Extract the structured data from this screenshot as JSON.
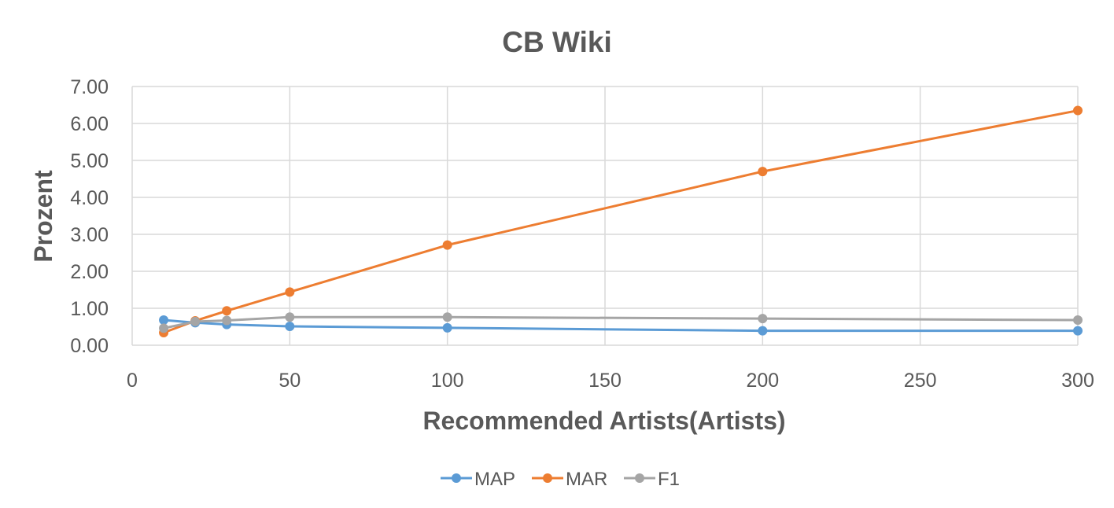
{
  "chart_data": {
    "type": "line",
    "title": "CB Wiki",
    "xlabel": "Recommended Artists(Artists)",
    "ylabel": "Prozent",
    "xlim": [
      0,
      300
    ],
    "ylim": [
      0,
      7
    ],
    "x_ticks": [
      "0",
      "50",
      "100",
      "150",
      "200",
      "250",
      "300"
    ],
    "y_ticks": [
      "0.00",
      "1.00",
      "2.00",
      "3.00",
      "4.00",
      "5.00",
      "6.00",
      "7.00"
    ],
    "grid": true,
    "legend_position": "bottom",
    "x": [
      10,
      20,
      30,
      50,
      100,
      200,
      300
    ],
    "series": [
      {
        "name": "MAP",
        "color": "#5B9BD5",
        "values": [
          0.68,
          0.61,
          0.56,
          0.51,
          0.47,
          0.39,
          0.39
        ]
      },
      {
        "name": "MAR",
        "color": "#ED7D31",
        "values": [
          0.34,
          0.66,
          0.93,
          1.44,
          2.71,
          4.7,
          6.35
        ]
      },
      {
        "name": "F1",
        "color": "#A5A5A5",
        "values": [
          0.46,
          0.64,
          0.67,
          0.76,
          0.76,
          0.72,
          0.68
        ]
      }
    ]
  }
}
